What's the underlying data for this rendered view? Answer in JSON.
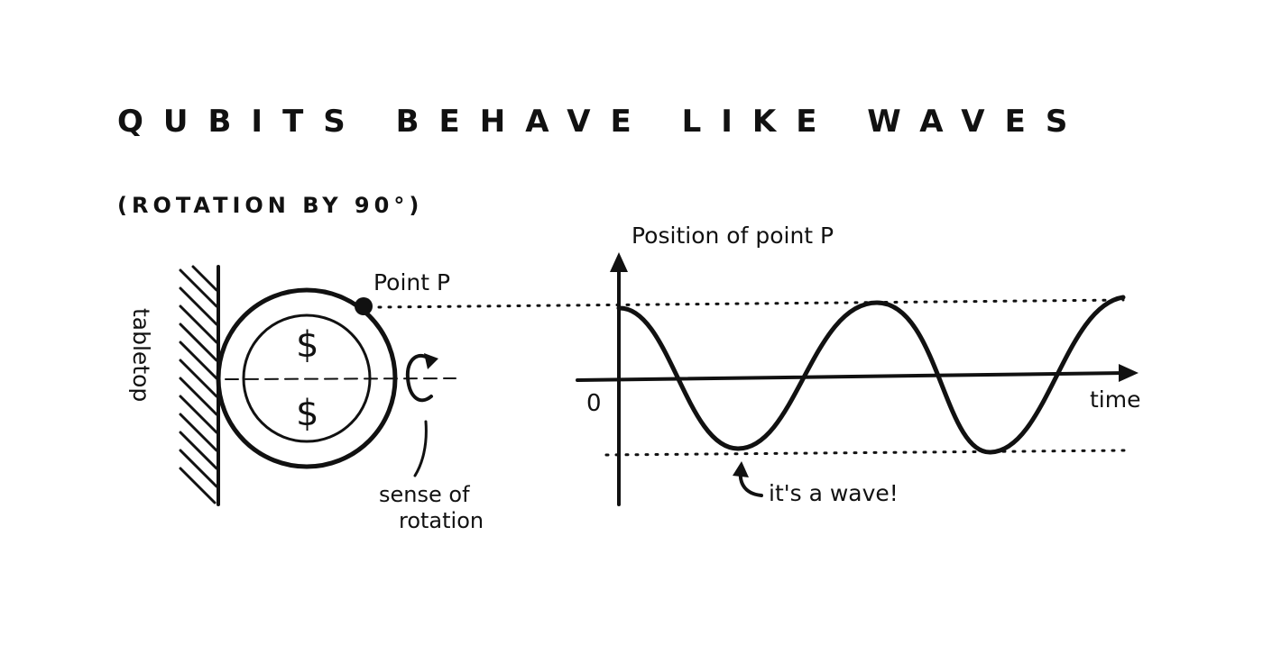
{
  "title": "QUBITS BEHAVE LIKE WAVES",
  "subtitle": "(ROTATION BY 90°)",
  "coin": {
    "tabletop_label": "tabletop",
    "point_label": "Point P",
    "symbol_top": "$",
    "symbol_bottom": "$",
    "rotation_label_line1": "sense of",
    "rotation_label_line2": "rotation"
  },
  "graph": {
    "y_axis_label": "Position of point P",
    "x_axis_label": "time",
    "origin_label": "0",
    "annotation": "it's a wave!"
  },
  "colors": {
    "ink": "#111111",
    "paper": "#ffffff"
  }
}
